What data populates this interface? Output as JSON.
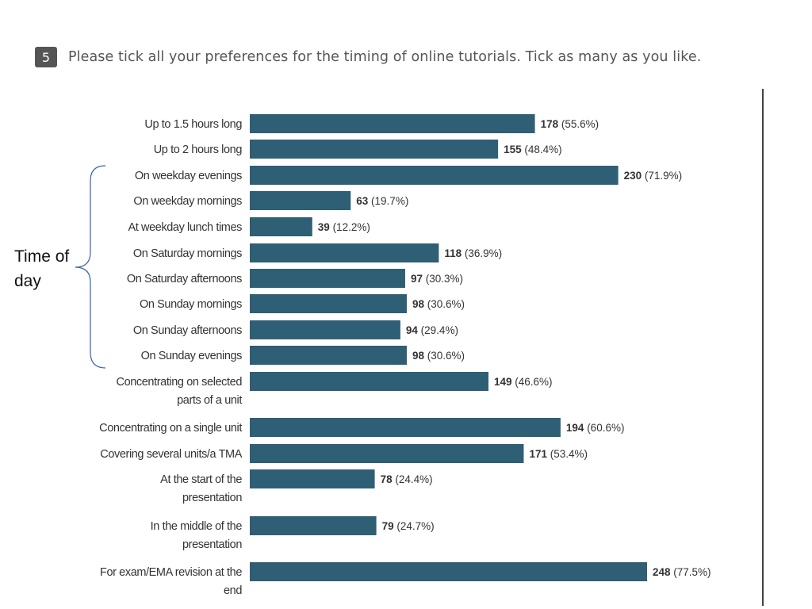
{
  "question": {
    "number": "5",
    "text": "Please tick all your preferences for the timing of online tutorials. Tick as many as you like."
  },
  "annotation": {
    "line1": "Time of",
    "line2": "day"
  },
  "colors": {
    "bar": "#2f5f74",
    "label": "#333333",
    "brace": "#3a62a7"
  },
  "chart_data": {
    "type": "bar",
    "orientation": "horizontal",
    "title": "",
    "xlabel": "",
    "ylabel": "",
    "xlim": [
      0,
      248
    ],
    "grid": false,
    "categories": [
      [
        "Up to 1.5 hours long"
      ],
      [
        "Up to 2 hours long"
      ],
      [
        "On weekday evenings"
      ],
      [
        "On weekday mornings"
      ],
      [
        "At weekday lunch times"
      ],
      [
        "On Saturday mornings"
      ],
      [
        "On Saturday afternoons"
      ],
      [
        "On Sunday mornings"
      ],
      [
        "On Sunday afternoons"
      ],
      [
        "On Sunday evenings"
      ],
      [
        "Concentrating on selected",
        "parts of a unit"
      ],
      [
        "Concentrating on a single unit"
      ],
      [
        "Covering several units/a TMA"
      ],
      [
        "At the start of the",
        "presentation"
      ],
      [
        "In the middle of the",
        "presentation"
      ],
      [
        "For exam/EMA revision at the",
        "end"
      ]
    ],
    "values": [
      178,
      155,
      230,
      63,
      39,
      118,
      97,
      98,
      94,
      98,
      149,
      194,
      171,
      78,
      79,
      248
    ],
    "percents": [
      "(55.6%)",
      "(48.4%)",
      "(71.9%)",
      "(19.7%)",
      "(12.2%)",
      "(36.9%)",
      "(30.3%)",
      "(30.6%)",
      "(29.4%)",
      "(30.6%)",
      "(46.6%)",
      "(60.6%)",
      "(53.4%)",
      "(24.4%)",
      "(24.7%)",
      "(77.5%)"
    ]
  }
}
